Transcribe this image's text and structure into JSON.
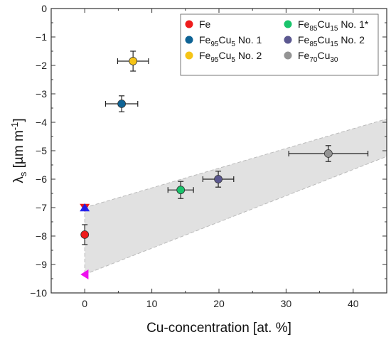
{
  "chart_data": {
    "type": "scatter",
    "xlabel": "Cu-concentration [at. %]",
    "ylabel": {
      "base": "λ",
      "sub": "s",
      "unit": " [µm m",
      "sup": "-1",
      "close": "]"
    },
    "xlim": [
      -5,
      45
    ],
    "ylim": [
      -10,
      0
    ],
    "x_ticks": [
      0,
      10,
      20,
      30,
      40
    ],
    "y_ticks": [
      0,
      -1,
      -2,
      -3,
      -4,
      -5,
      -6,
      -7,
      -8,
      -9,
      -10
    ],
    "x_tick_labels": [
      "0",
      "10",
      "20",
      "30",
      "40"
    ],
    "y_tick_labels": [
      "0",
      "−1",
      "−2",
      "−3",
      "−4",
      "−5",
      "−6",
      "−7",
      "−8",
      "−9",
      "−10"
    ],
    "legend_position": "top-right",
    "series": [
      {
        "name": [
          "Fe",
          "",
          "",
          "",
          ""
        ],
        "color": "#ee1c1c",
        "points": [
          {
            "x": 0,
            "y": -7.95,
            "xerr": 0,
            "yerr": 0.35
          }
        ]
      },
      {
        "name": [
          "Fe",
          "95",
          "Cu",
          "5",
          " No. 1"
        ],
        "color": "#0e6395",
        "points": [
          {
            "x": 5.5,
            "y": -3.35,
            "xerr": 2.4,
            "yerr": 0.28
          }
        ]
      },
      {
        "name": [
          "Fe",
          "95",
          "Cu",
          "5",
          " No. 2"
        ],
        "color": "#f5c417",
        "points": [
          {
            "x": 7.2,
            "y": -1.85,
            "xerr": 2.3,
            "yerr": 0.35
          }
        ]
      },
      {
        "name": [
          "Fe",
          "85",
          "Cu",
          "15",
          " No. 1*"
        ],
        "color": "#19c46c",
        "points": [
          {
            "x": 14.3,
            "y": -6.38,
            "xerr": 1.9,
            "yerr": 0.3
          }
        ]
      },
      {
        "name": [
          "Fe",
          "85",
          "Cu",
          "15",
          " No. 2"
        ],
        "color": "#5b5890",
        "points": [
          {
            "x": 19.9,
            "y": -6.0,
            "xerr": 2.3,
            "yerr": 0.28
          }
        ]
      },
      {
        "name": [
          "Fe",
          "70",
          "Cu",
          "30",
          ""
        ],
        "color": "#949494",
        "points": [
          {
            "x": 36.3,
            "y": -5.1,
            "xerr": 5.9,
            "yerr": 0.28
          }
        ]
      }
    ],
    "reference_markers": [
      {
        "x": 0,
        "y": -7.0,
        "shape": "triangle-down",
        "color": "#ee1c1c"
      },
      {
        "x": 0,
        "y": -7.0,
        "shape": "triangle-up",
        "color": "#1a1aee"
      },
      {
        "x": 0,
        "y": -9.35,
        "shape": "triangle-left",
        "color": "#ee11ee"
      }
    ],
    "bands": [
      {
        "x": [
          0,
          45
        ],
        "upper": [
          -7.0,
          -3.88
        ],
        "lower": [
          -9.35,
          -5.2
        ],
        "color": "#e1e1e1"
      }
    ]
  }
}
